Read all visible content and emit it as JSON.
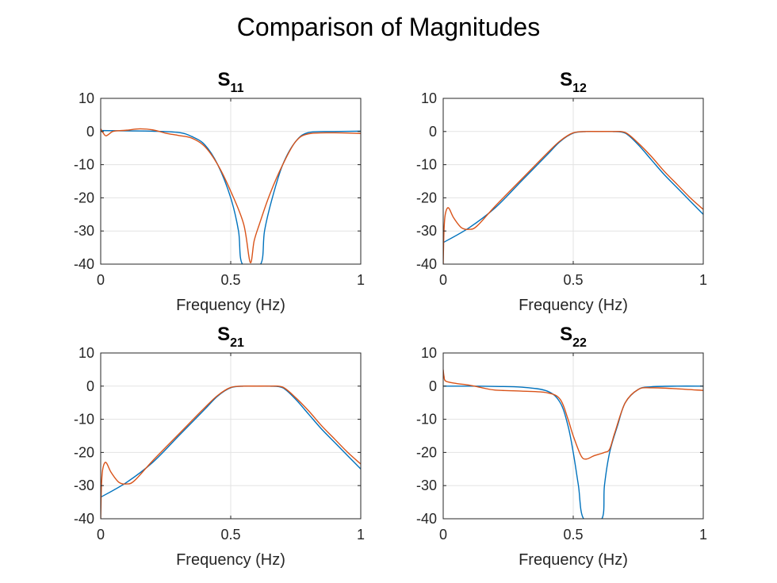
{
  "figure": {
    "title": "Comparison of Magnitudes"
  },
  "colors": {
    "series1": "#0072BD",
    "series2": "#D95319",
    "grid": "#e3e3e3",
    "axis": "#262626"
  },
  "chart_data": [
    {
      "type": "line",
      "title": "S",
      "title_sub": "11",
      "xlabel": "Frequency (Hz)",
      "ylabel": "",
      "xlim": [
        0,
        1
      ],
      "ylim": [
        -40,
        10
      ],
      "xticks": [
        0,
        0.5,
        1
      ],
      "xtick_labels": [
        "0",
        "0.5",
        "1"
      ],
      "yticks": [
        10,
        0,
        -10,
        -20,
        -30,
        -40
      ],
      "ytick_labels": [
        "10",
        "0",
        "-10",
        "-20",
        "-30",
        "-40"
      ],
      "grid": true,
      "series": [
        {
          "color": "#0072BD",
          "points": [
            [
              0,
              0.3
            ],
            [
              0.1,
              0.2
            ],
            [
              0.2,
              0.1
            ],
            [
              0.3,
              -0.3
            ],
            [
              0.35,
              -1.5
            ],
            [
              0.4,
              -4
            ],
            [
              0.45,
              -10
            ],
            [
              0.5,
              -20
            ],
            [
              0.53,
              -30
            ],
            [
              0.545,
              -40
            ],
            [
              0.615,
              -40
            ],
            [
              0.63,
              -30
            ],
            [
              0.66,
              -20
            ],
            [
              0.7,
              -10
            ],
            [
              0.75,
              -3
            ],
            [
              0.8,
              -0.3
            ],
            [
              0.9,
              0
            ],
            [
              1.0,
              0.1
            ]
          ]
        },
        {
          "color": "#D95319",
          "points": [
            [
              0,
              0.8
            ],
            [
              0.01,
              -0.5
            ],
            [
              0.02,
              -1.3
            ],
            [
              0.035,
              -0.6
            ],
            [
              0.05,
              0.1
            ],
            [
              0.1,
              0.4
            ],
            [
              0.15,
              0.8
            ],
            [
              0.2,
              0.5
            ],
            [
              0.25,
              -0.5
            ],
            [
              0.3,
              -1.2
            ],
            [
              0.35,
              -2
            ],
            [
              0.4,
              -4.5
            ],
            [
              0.45,
              -10
            ],
            [
              0.5,
              -18
            ],
            [
              0.55,
              -28
            ],
            [
              0.575,
              -39.5
            ],
            [
              0.59,
              -33
            ],
            [
              0.61,
              -28
            ],
            [
              0.65,
              -19
            ],
            [
              0.7,
              -10
            ],
            [
              0.75,
              -3
            ],
            [
              0.8,
              -0.7
            ],
            [
              0.9,
              -0.4
            ],
            [
              1.0,
              -0.6
            ]
          ]
        }
      ]
    },
    {
      "type": "line",
      "title": "S",
      "title_sub": "12",
      "xlabel": "Frequency (Hz)",
      "ylabel": "",
      "xlim": [
        0,
        1
      ],
      "ylim": [
        -40,
        10
      ],
      "xticks": [
        0,
        0.5,
        1
      ],
      "xtick_labels": [
        "0",
        "0.5",
        "1"
      ],
      "yticks": [
        10,
        0,
        -10,
        -20,
        -30,
        -40
      ],
      "ytick_labels": [
        "10",
        "0",
        "-10",
        "-20",
        "-30",
        "-40"
      ],
      "grid": true,
      "series": [
        {
          "color": "#0072BD",
          "points": [
            [
              0,
              -33.5
            ],
            [
              0.1,
              -29
            ],
            [
              0.2,
              -23
            ],
            [
              0.3,
              -15
            ],
            [
              0.4,
              -7
            ],
            [
              0.45,
              -3
            ],
            [
              0.5,
              -0.5
            ],
            [
              0.55,
              0
            ],
            [
              0.6,
              0
            ],
            [
              0.65,
              0
            ],
            [
              0.7,
              -0.5
            ],
            [
              0.75,
              -4
            ],
            [
              0.8,
              -8.5
            ],
            [
              0.85,
              -13
            ],
            [
              0.9,
              -17
            ],
            [
              0.95,
              -21
            ],
            [
              1.0,
              -25
            ]
          ]
        },
        {
          "color": "#D95319",
          "points": [
            [
              0,
              -40
            ],
            [
              0.003,
              -30
            ],
            [
              0.008,
              -25
            ],
            [
              0.02,
              -23
            ],
            [
              0.04,
              -26
            ],
            [
              0.07,
              -29
            ],
            [
              0.1,
              -29.5
            ],
            [
              0.13,
              -28.5
            ],
            [
              0.2,
              -22.5
            ],
            [
              0.3,
              -14.5
            ],
            [
              0.4,
              -6.5
            ],
            [
              0.45,
              -2.8
            ],
            [
              0.5,
              -0.4
            ],
            [
              0.55,
              0
            ],
            [
              0.6,
              0
            ],
            [
              0.65,
              0
            ],
            [
              0.7,
              -0.3
            ],
            [
              0.75,
              -3.5
            ],
            [
              0.8,
              -7.5
            ],
            [
              0.85,
              -12
            ],
            [
              0.9,
              -16
            ],
            [
              0.95,
              -20
            ],
            [
              1.0,
              -23.5
            ]
          ]
        }
      ]
    },
    {
      "type": "line",
      "title": "S",
      "title_sub": "21",
      "xlabel": "Frequency (Hz)",
      "ylabel": "",
      "xlim": [
        0,
        1
      ],
      "ylim": [
        -40,
        10
      ],
      "xticks": [
        0,
        0.5,
        1
      ],
      "xtick_labels": [
        "0",
        "0.5",
        "1"
      ],
      "yticks": [
        10,
        0,
        -10,
        -20,
        -30,
        -40
      ],
      "ytick_labels": [
        "10",
        "0",
        "-10",
        "-20",
        "-30",
        "-40"
      ],
      "grid": true,
      "series": [
        {
          "color": "#0072BD",
          "points": [
            [
              0,
              -33.5
            ],
            [
              0.1,
              -29
            ],
            [
              0.2,
              -23
            ],
            [
              0.3,
              -15
            ],
            [
              0.4,
              -7
            ],
            [
              0.45,
              -3
            ],
            [
              0.5,
              -0.5
            ],
            [
              0.55,
              0
            ],
            [
              0.6,
              0
            ],
            [
              0.65,
              0
            ],
            [
              0.7,
              -0.5
            ],
            [
              0.75,
              -4
            ],
            [
              0.8,
              -8.5
            ],
            [
              0.85,
              -13
            ],
            [
              0.9,
              -17
            ],
            [
              0.95,
              -21
            ],
            [
              1.0,
              -25
            ]
          ]
        },
        {
          "color": "#D95319",
          "points": [
            [
              0,
              -40
            ],
            [
              0.003,
              -30
            ],
            [
              0.008,
              -25
            ],
            [
              0.02,
              -23
            ],
            [
              0.04,
              -26
            ],
            [
              0.07,
              -29
            ],
            [
              0.1,
              -29.5
            ],
            [
              0.13,
              -28.5
            ],
            [
              0.2,
              -22.5
            ],
            [
              0.3,
              -14.5
            ],
            [
              0.4,
              -6.5
            ],
            [
              0.45,
              -2.8
            ],
            [
              0.5,
              -0.4
            ],
            [
              0.55,
              0
            ],
            [
              0.6,
              0
            ],
            [
              0.65,
              0
            ],
            [
              0.7,
              -0.3
            ],
            [
              0.75,
              -3.5
            ],
            [
              0.8,
              -7.5
            ],
            [
              0.85,
              -12
            ],
            [
              0.9,
              -16
            ],
            [
              0.95,
              -20
            ],
            [
              1.0,
              -23.5
            ]
          ]
        }
      ]
    },
    {
      "type": "line",
      "title": "S",
      "title_sub": "22",
      "xlabel": "Frequency (Hz)",
      "ylabel": "",
      "xlim": [
        0,
        1
      ],
      "ylim": [
        -40,
        10
      ],
      "xticks": [
        0,
        0.5,
        1
      ],
      "xtick_labels": [
        "0",
        "0.5",
        "1"
      ],
      "yticks": [
        10,
        0,
        -10,
        -20,
        -30,
        -40
      ],
      "ytick_labels": [
        "10",
        "0",
        "-10",
        "-20",
        "-30",
        "-40"
      ],
      "grid": true,
      "series": [
        {
          "color": "#0072BD",
          "points": [
            [
              0,
              0
            ],
            [
              0.1,
              0
            ],
            [
              0.2,
              -0.1
            ],
            [
              0.3,
              -0.3
            ],
            [
              0.4,
              -1.5
            ],
            [
              0.45,
              -5
            ],
            [
              0.48,
              -12
            ],
            [
              0.5,
              -20
            ],
            [
              0.52,
              -30
            ],
            [
              0.54,
              -40
            ],
            [
              0.61,
              -40
            ],
            [
              0.62,
              -30
            ],
            [
              0.64,
              -20
            ],
            [
              0.67,
              -12
            ],
            [
              0.7,
              -5
            ],
            [
              0.75,
              -1
            ],
            [
              0.8,
              -0.2
            ],
            [
              0.9,
              0
            ],
            [
              1.0,
              0
            ]
          ]
        },
        {
          "color": "#D95319",
          "points": [
            [
              0,
              5
            ],
            [
              0.003,
              3
            ],
            [
              0.01,
              1.5
            ],
            [
              0.05,
              0.8
            ],
            [
              0.1,
              0.3
            ],
            [
              0.15,
              -0.5
            ],
            [
              0.2,
              -1.2
            ],
            [
              0.3,
              -1.5
            ],
            [
              0.4,
              -2
            ],
            [
              0.45,
              -4
            ],
            [
              0.48,
              -10
            ],
            [
              0.5,
              -15
            ],
            [
              0.53,
              -21
            ],
            [
              0.55,
              -22
            ],
            [
              0.58,
              -21
            ],
            [
              0.62,
              -20
            ],
            [
              0.64,
              -19
            ],
            [
              0.66,
              -14
            ],
            [
              0.7,
              -5
            ],
            [
              0.75,
              -1
            ],
            [
              0.8,
              -0.5
            ],
            [
              0.9,
              -0.8
            ],
            [
              1.0,
              -1.3
            ]
          ]
        }
      ]
    }
  ]
}
